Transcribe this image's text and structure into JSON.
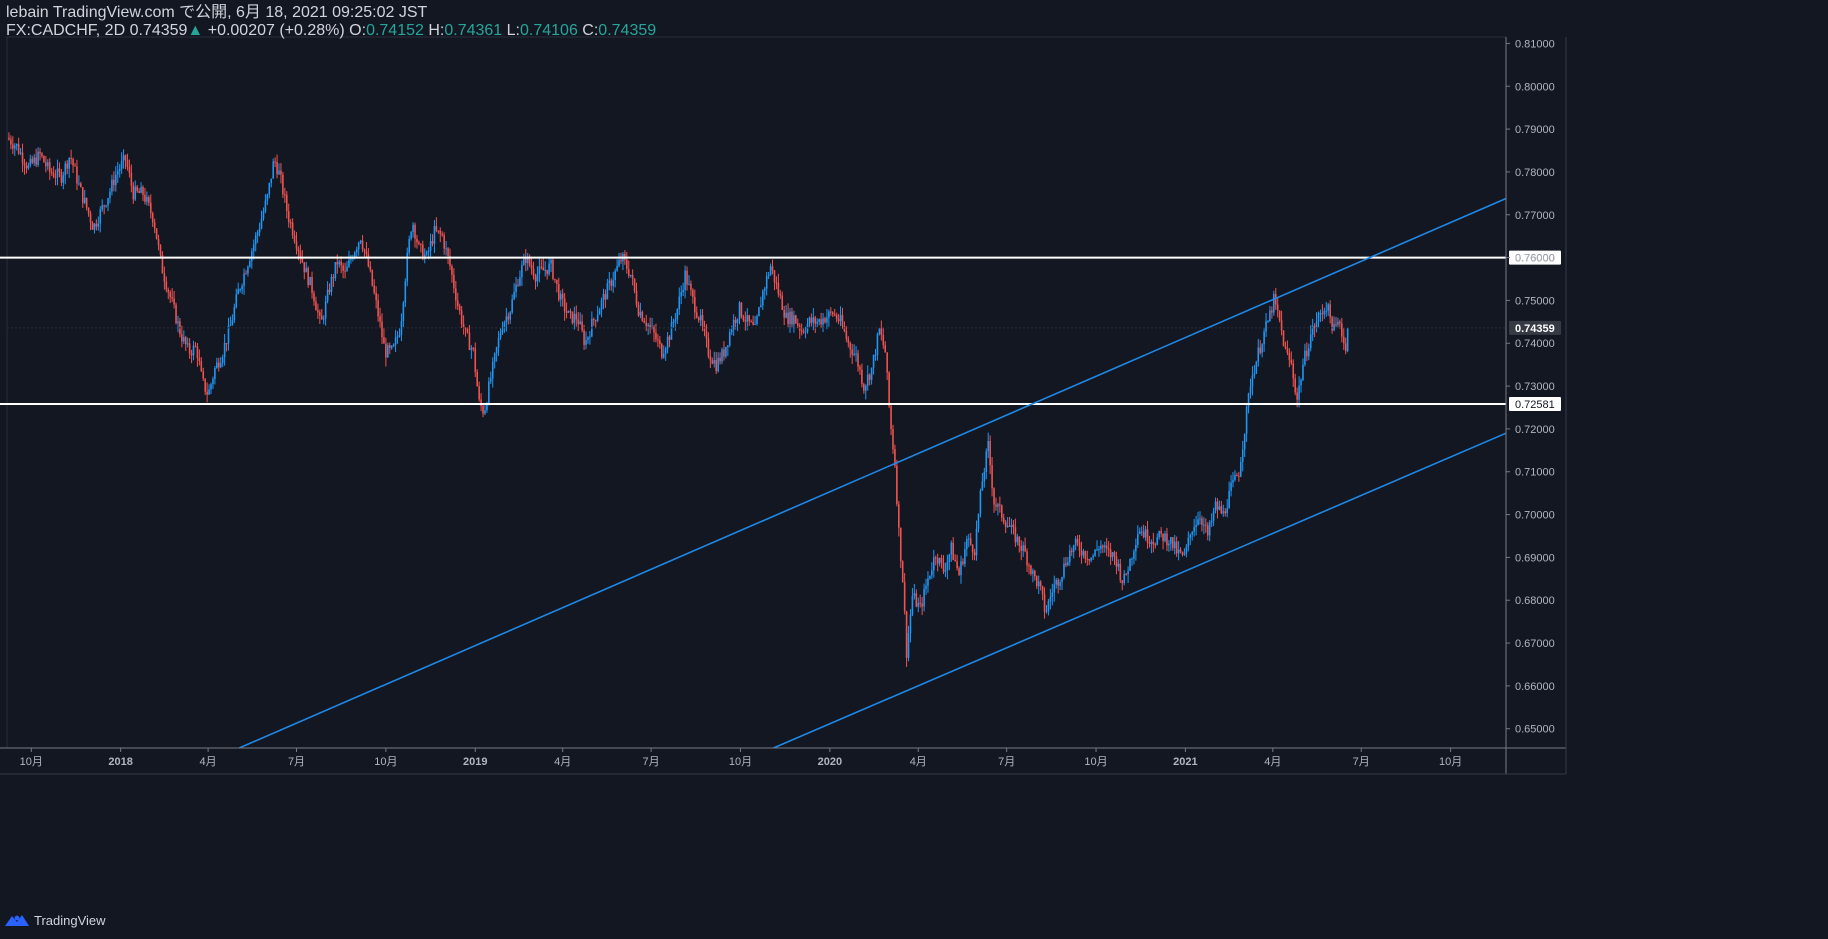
{
  "header": {
    "published": "lebain TradingView.com で公開, 6月 18, 2021 09:25:02 JST",
    "symbol": "FX:CADCHF, 2D",
    "last": "0.74359",
    "change_arrow": "▲",
    "change": "+0.00207 (+0.28%)",
    "o_label": "O:",
    "o": "0.74152",
    "h_label": "H:",
    "h": "0.74361",
    "l_label": "L:",
    "l": "0.74106",
    "c_label": "C:",
    "c": "0.74359"
  },
  "footer": {
    "brand": "TradingView",
    "logo_icon": "tradingview-logo-icon"
  },
  "colors": {
    "background": "#131722",
    "up": "#2196f3",
    "down": "#ef5350",
    "trendline": "#1e88e5",
    "hline": "#ffffff",
    "axis_text": "#b2b5be",
    "green_text": "#26a69a"
  },
  "chart_data": {
    "type": "candlestick",
    "symbol": "FX:CADCHF",
    "timeframe": "2D",
    "ylim": [
      0.6455,
      0.8115
    ],
    "y_ticks": [
      0.81,
      0.8,
      0.79,
      0.78,
      0.77,
      0.76,
      0.75,
      0.74,
      0.73,
      0.72,
      0.71,
      0.7,
      0.69,
      0.68,
      0.67,
      0.66,
      0.65
    ],
    "y_tick_labels": [
      "0.81000",
      "0.80000",
      "0.79000",
      "0.78000",
      "0.77000",
      "0.76000",
      "0.75000",
      "0.74000",
      "0.73000",
      "0.72000",
      "0.71000",
      "0.70000",
      "0.69000",
      "0.68000",
      "0.67000",
      "0.66000",
      "0.65000"
    ],
    "xlim": [
      "2017-09-06",
      "2021-11-27"
    ],
    "x_ticks": [
      {
        "label": "10月",
        "date": "2017-10-01"
      },
      {
        "label": "2018",
        "date": "2018-01-01"
      },
      {
        "label": "4月",
        "date": "2018-04-01"
      },
      {
        "label": "7月",
        "date": "2018-07-01"
      },
      {
        "label": "10月",
        "date": "2018-10-01"
      },
      {
        "label": "2019",
        "date": "2019-01-01"
      },
      {
        "label": "4月",
        "date": "2019-04-01"
      },
      {
        "label": "7月",
        "date": "2019-07-01"
      },
      {
        "label": "10月",
        "date": "2019-10-01"
      },
      {
        "label": "2020",
        "date": "2020-01-01"
      },
      {
        "label": "4月",
        "date": "2020-04-01"
      },
      {
        "label": "7月",
        "date": "2020-07-01"
      },
      {
        "label": "10月",
        "date": "2020-10-01"
      },
      {
        "label": "2021",
        "date": "2021-01-01"
      },
      {
        "label": "4月",
        "date": "2021-04-01"
      },
      {
        "label": "7月",
        "date": "2021-07-01"
      },
      {
        "label": "10月",
        "date": "2021-10-01"
      }
    ],
    "close_path": [
      [
        "2017-09-06",
        0.788
      ],
      [
        "2017-09-16",
        0.786
      ],
      [
        "2017-09-28",
        0.781
      ],
      [
        "2017-10-10",
        0.784
      ],
      [
        "2017-10-20",
        0.78
      ],
      [
        "2017-11-01",
        0.779
      ],
      [
        "2017-11-10",
        0.784
      ],
      [
        "2017-11-20",
        0.776
      ],
      [
        "2017-11-28",
        0.771
      ],
      [
        "2017-12-04",
        0.767
      ],
      [
        "2017-12-12",
        0.771
      ],
      [
        "2017-12-20",
        0.775
      ],
      [
        "2017-12-28",
        0.78
      ],
      [
        "2018-01-06",
        0.783
      ],
      [
        "2018-01-14",
        0.775
      ],
      [
        "2018-01-24",
        0.775
      ],
      [
        "2018-02-04",
        0.769
      ],
      [
        "2018-02-12",
        0.758
      ],
      [
        "2018-02-22",
        0.75
      ],
      [
        "2018-03-04",
        0.742
      ],
      [
        "2018-03-12",
        0.738
      ],
      [
        "2018-03-20",
        0.739
      ],
      [
        "2018-03-26",
        0.731
      ],
      [
        "2018-04-01",
        0.728
      ],
      [
        "2018-04-08",
        0.734
      ],
      [
        "2018-04-16",
        0.738
      ],
      [
        "2018-04-24",
        0.744
      ],
      [
        "2018-05-02",
        0.752
      ],
      [
        "2018-05-12",
        0.759
      ],
      [
        "2018-05-22",
        0.766
      ],
      [
        "2018-06-01",
        0.774
      ],
      [
        "2018-06-08",
        0.783
      ],
      [
        "2018-06-14",
        0.779
      ],
      [
        "2018-06-22",
        0.77
      ],
      [
        "2018-07-02",
        0.763
      ],
      [
        "2018-07-10",
        0.757
      ],
      [
        "2018-07-18",
        0.752
      ],
      [
        "2018-07-26",
        0.744
      ],
      [
        "2018-08-04",
        0.753
      ],
      [
        "2018-08-12",
        0.759
      ],
      [
        "2018-08-20",
        0.756
      ],
      [
        "2018-08-28",
        0.761
      ],
      [
        "2018-09-05",
        0.765
      ],
      [
        "2018-09-13",
        0.758
      ],
      [
        "2018-09-22",
        0.748
      ],
      [
        "2018-09-30",
        0.738
      ],
      [
        "2018-10-08",
        0.738
      ],
      [
        "2018-10-16",
        0.744
      ],
      [
        "2018-10-22",
        0.758
      ],
      [
        "2018-10-28",
        0.769
      ],
      [
        "2018-11-04",
        0.762
      ],
      [
        "2018-11-12",
        0.76
      ],
      [
        "2018-11-20",
        0.766
      ],
      [
        "2018-11-28",
        0.765
      ],
      [
        "2018-12-06",
        0.758
      ],
      [
        "2018-12-14",
        0.749
      ],
      [
        "2018-12-22",
        0.742
      ],
      [
        "2018-12-30",
        0.738
      ],
      [
        "2019-01-05",
        0.726
      ],
      [
        "2019-01-10",
        0.724
      ],
      [
        "2019-01-18",
        0.733
      ],
      [
        "2019-01-28",
        0.744
      ],
      [
        "2019-02-06",
        0.748
      ],
      [
        "2019-02-14",
        0.755
      ],
      [
        "2019-02-22",
        0.76
      ],
      [
        "2019-03-04",
        0.756
      ],
      [
        "2019-03-12",
        0.757
      ],
      [
        "2019-03-20",
        0.758
      ],
      [
        "2019-03-30",
        0.75
      ],
      [
        "2019-04-08",
        0.746
      ],
      [
        "2019-04-16",
        0.746
      ],
      [
        "2019-04-24",
        0.74
      ],
      [
        "2019-05-02",
        0.745
      ],
      [
        "2019-05-12",
        0.75
      ],
      [
        "2019-05-22",
        0.755
      ],
      [
        "2019-06-01",
        0.76
      ],
      [
        "2019-06-10",
        0.756
      ],
      [
        "2019-06-18",
        0.748
      ],
      [
        "2019-06-26",
        0.745
      ],
      [
        "2019-07-04",
        0.742
      ],
      [
        "2019-07-12",
        0.738
      ],
      [
        "2019-07-20",
        0.742
      ],
      [
        "2019-07-28",
        0.748
      ],
      [
        "2019-08-05",
        0.756
      ],
      [
        "2019-08-13",
        0.75
      ],
      [
        "2019-08-21",
        0.745
      ],
      [
        "2019-08-29",
        0.738
      ],
      [
        "2019-09-06",
        0.735
      ],
      [
        "2019-09-14",
        0.738
      ],
      [
        "2019-09-22",
        0.744
      ],
      [
        "2019-09-30",
        0.748
      ],
      [
        "2019-10-08",
        0.745
      ],
      [
        "2019-10-16",
        0.743
      ],
      [
        "2019-10-24",
        0.752
      ],
      [
        "2019-11-01",
        0.758
      ],
      [
        "2019-11-09",
        0.752
      ],
      [
        "2019-11-17",
        0.746
      ],
      [
        "2019-11-25",
        0.746
      ],
      [
        "2019-12-03",
        0.743
      ],
      [
        "2019-12-11",
        0.745
      ],
      [
        "2019-12-19",
        0.745
      ],
      [
        "2019-12-27",
        0.746
      ],
      [
        "2020-01-04",
        0.747
      ],
      [
        "2020-01-12",
        0.745
      ],
      [
        "2020-01-20",
        0.74
      ],
      [
        "2020-01-28",
        0.737
      ],
      [
        "2020-02-05",
        0.73
      ],
      [
        "2020-02-13",
        0.734
      ],
      [
        "2020-02-21",
        0.743
      ],
      [
        "2020-02-27",
        0.738
      ],
      [
        "2020-03-03",
        0.722
      ],
      [
        "2020-03-08",
        0.712
      ],
      [
        "2020-03-12",
        0.696
      ],
      [
        "2020-03-16",
        0.685
      ],
      [
        "2020-03-20",
        0.668
      ],
      [
        "2020-03-26",
        0.681
      ],
      [
        "2020-04-03",
        0.678
      ],
      [
        "2020-04-11",
        0.685
      ],
      [
        "2020-04-19",
        0.691
      ],
      [
        "2020-04-27",
        0.687
      ],
      [
        "2020-05-05",
        0.692
      ],
      [
        "2020-05-13",
        0.686
      ],
      [
        "2020-05-21",
        0.694
      ],
      [
        "2020-05-29",
        0.692
      ],
      [
        "2020-06-06",
        0.708
      ],
      [
        "2020-06-12",
        0.716
      ],
      [
        "2020-06-18",
        0.703
      ],
      [
        "2020-06-26",
        0.7
      ],
      [
        "2020-07-04",
        0.697
      ],
      [
        "2020-07-12",
        0.694
      ],
      [
        "2020-07-20",
        0.691
      ],
      [
        "2020-07-28",
        0.686
      ],
      [
        "2020-08-04",
        0.683
      ],
      [
        "2020-08-10",
        0.677
      ],
      [
        "2020-08-18",
        0.683
      ],
      [
        "2020-08-26",
        0.686
      ],
      [
        "2020-09-03",
        0.691
      ],
      [
        "2020-09-11",
        0.693
      ],
      [
        "2020-09-19",
        0.691
      ],
      [
        "2020-09-27",
        0.69
      ],
      [
        "2020-10-05",
        0.693
      ],
      [
        "2020-10-13",
        0.691
      ],
      [
        "2020-10-21",
        0.69
      ],
      [
        "2020-10-29",
        0.684
      ],
      [
        "2020-11-06",
        0.69
      ],
      [
        "2020-11-14",
        0.697
      ],
      [
        "2020-11-22",
        0.695
      ],
      [
        "2020-11-30",
        0.694
      ],
      [
        "2020-12-08",
        0.695
      ],
      [
        "2020-12-16",
        0.694
      ],
      [
        "2020-12-24",
        0.691
      ],
      [
        "2020-12-31",
        0.69
      ],
      [
        "2021-01-08",
        0.697
      ],
      [
        "2021-01-16",
        0.7
      ],
      [
        "2021-01-24",
        0.695
      ],
      [
        "2021-02-01",
        0.702
      ],
      [
        "2021-02-09",
        0.7
      ],
      [
        "2021-02-17",
        0.706
      ],
      [
        "2021-02-25",
        0.71
      ],
      [
        "2021-03-03",
        0.72
      ],
      [
        "2021-03-09",
        0.731
      ],
      [
        "2021-03-15",
        0.736
      ],
      [
        "2021-03-21",
        0.741
      ],
      [
        "2021-03-27",
        0.745
      ],
      [
        "2021-04-02",
        0.75
      ],
      [
        "2021-04-08",
        0.745
      ],
      [
        "2021-04-14",
        0.738
      ],
      [
        "2021-04-20",
        0.735
      ],
      [
        "2021-04-26",
        0.727
      ],
      [
        "2021-05-02",
        0.735
      ],
      [
        "2021-05-10",
        0.742
      ],
      [
        "2021-05-18",
        0.746
      ],
      [
        "2021-05-26",
        0.749
      ],
      [
        "2021-06-03",
        0.743
      ],
      [
        "2021-06-09",
        0.745
      ],
      [
        "2021-06-15",
        0.738
      ],
      [
        "2021-06-18",
        0.7436
      ]
    ],
    "hlines": [
      {
        "price": 0.76,
        "label": "0.76000"
      },
      {
        "price": 0.72581,
        "label": "0.72581"
      }
    ],
    "last_price_label": "0.74359",
    "trendlines": [
      {
        "from": [
          "2018-05-03",
          0.6455
        ],
        "to": [
          "2021-11-27",
          0.7738
        ]
      },
      {
        "from": [
          "2019-11-04",
          0.6455
        ],
        "to": [
          "2021-11-27",
          0.719
        ]
      }
    ]
  }
}
